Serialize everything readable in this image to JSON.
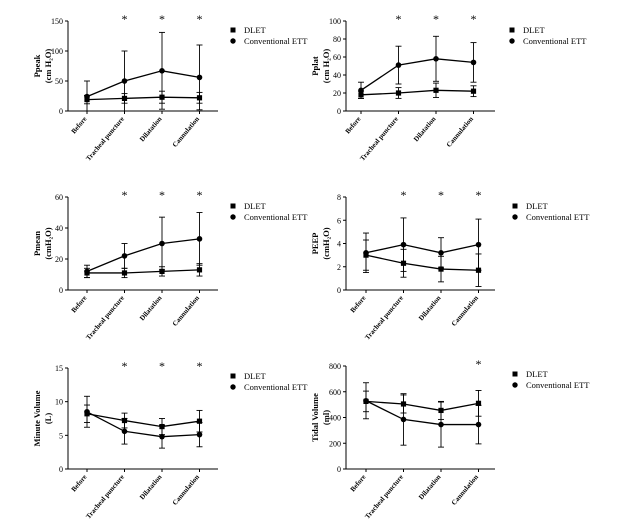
{
  "series_names": [
    "DLET",
    "Conventional ETT"
  ],
  "categories": [
    "Before",
    "Tracheal puncture",
    "Dilatation",
    "Cannulation"
  ],
  "chart_data": [
    {
      "type": "line",
      "ylabel": [
        "Ppeak",
        "(cm H₂O)"
      ],
      "ylim": [
        0,
        150
      ],
      "yticks": [
        "0",
        "50",
        "100",
        "150"
      ],
      "significance": [
        "",
        "*",
        "*",
        "*"
      ],
      "series": [
        {
          "name": "DLET",
          "marker": "square",
          "values": [
            19,
            21,
            23,
            22
          ],
          "err": [
            7,
            8,
            10,
            9
          ]
        },
        {
          "name": "Conventional ETT",
          "marker": "circle",
          "values": [
            24,
            50,
            67,
            56
          ],
          "err": [
            26,
            50,
            64,
            54
          ]
        }
      ]
    },
    {
      "type": "line",
      "ylabel": [
        "Pplat",
        "(cm H₂O)"
      ],
      "ylim": [
        0,
        100
      ],
      "yticks": [
        "0",
        "20",
        "40",
        "60",
        "80",
        "100"
      ],
      "significance": [
        "",
        "*",
        "*",
        "*"
      ],
      "series": [
        {
          "name": "DLET",
          "marker": "square",
          "values": [
            18,
            20,
            23,
            22
          ],
          "err": [
            4,
            6,
            8,
            6
          ]
        },
        {
          "name": "Conventional ETT",
          "marker": "circle",
          "values": [
            23,
            51,
            58,
            54
          ],
          "err": [
            9,
            21,
            25,
            22
          ]
        }
      ]
    },
    {
      "type": "line",
      "ylabel": [
        "Pmean",
        "(cmH₂O)"
      ],
      "ylim": [
        0,
        60
      ],
      "yticks": [
        "0",
        "20",
        "40",
        "60"
      ],
      "significance": [
        "",
        "*",
        "*",
        "*"
      ],
      "series": [
        {
          "name": "DLET",
          "marker": "square",
          "values": [
            11,
            11,
            12,
            13
          ],
          "err": [
            3,
            3,
            3,
            4
          ]
        },
        {
          "name": "Conventional ETT",
          "marker": "circle",
          "values": [
            12,
            22,
            30,
            33
          ],
          "err": [
            4,
            8,
            17,
            17
          ]
        }
      ]
    },
    {
      "type": "line",
      "ylabel": [
        "PEEP",
        "(cmH₂O)"
      ],
      "ylim": [
        0,
        8
      ],
      "yticks": [
        "0",
        "2",
        "4",
        "6",
        "8"
      ],
      "significance": [
        "",
        "*",
        "*",
        "*"
      ],
      "series": [
        {
          "name": "DLET",
          "marker": "square",
          "values": [
            3.0,
            2.3,
            1.8,
            1.7
          ],
          "err": [
            1.3,
            1.2,
            1.1,
            1.4
          ]
        },
        {
          "name": "Conventional ETT",
          "marker": "circle",
          "values": [
            3.2,
            3.9,
            3.2,
            3.9
          ],
          "err": [
            1.7,
            2.3,
            1.3,
            2.2
          ]
        }
      ]
    },
    {
      "type": "line",
      "ylabel": [
        "Minute Volume",
        "(L)"
      ],
      "ylim": [
        0,
        15
      ],
      "yticks": [
        "0",
        "5",
        "10",
        "15"
      ],
      "significance": [
        "",
        "*",
        "*",
        "*"
      ],
      "series": [
        {
          "name": "DLET",
          "marker": "square",
          "values": [
            8.2,
            7.2,
            6.3,
            7.1
          ],
          "err": [
            1.3,
            1.1,
            1.2,
            1.6
          ]
        },
        {
          "name": "Conventional ETT",
          "marker": "circle",
          "values": [
            8.5,
            5.6,
            4.8,
            5.1
          ],
          "err": [
            2.3,
            1.9,
            1.7,
            1.8
          ]
        }
      ]
    },
    {
      "type": "line",
      "ylabel": [
        "Tidal Volume",
        "(ml)"
      ],
      "ylim": [
        0,
        800
      ],
      "yticks": [
        "0",
        "200",
        "400",
        "600",
        "800"
      ],
      "significance": [
        "",
        "",
        "",
        "*"
      ],
      "series": [
        {
          "name": "DLET",
          "marker": "square",
          "values": [
            525,
            505,
            455,
            510
          ],
          "err": [
            80,
            70,
            70,
            100
          ]
        },
        {
          "name": "Conventional ETT",
          "marker": "circle",
          "values": [
            530,
            385,
            345,
            345
          ],
          "err": [
            140,
            200,
            175,
            150
          ]
        }
      ]
    }
  ]
}
